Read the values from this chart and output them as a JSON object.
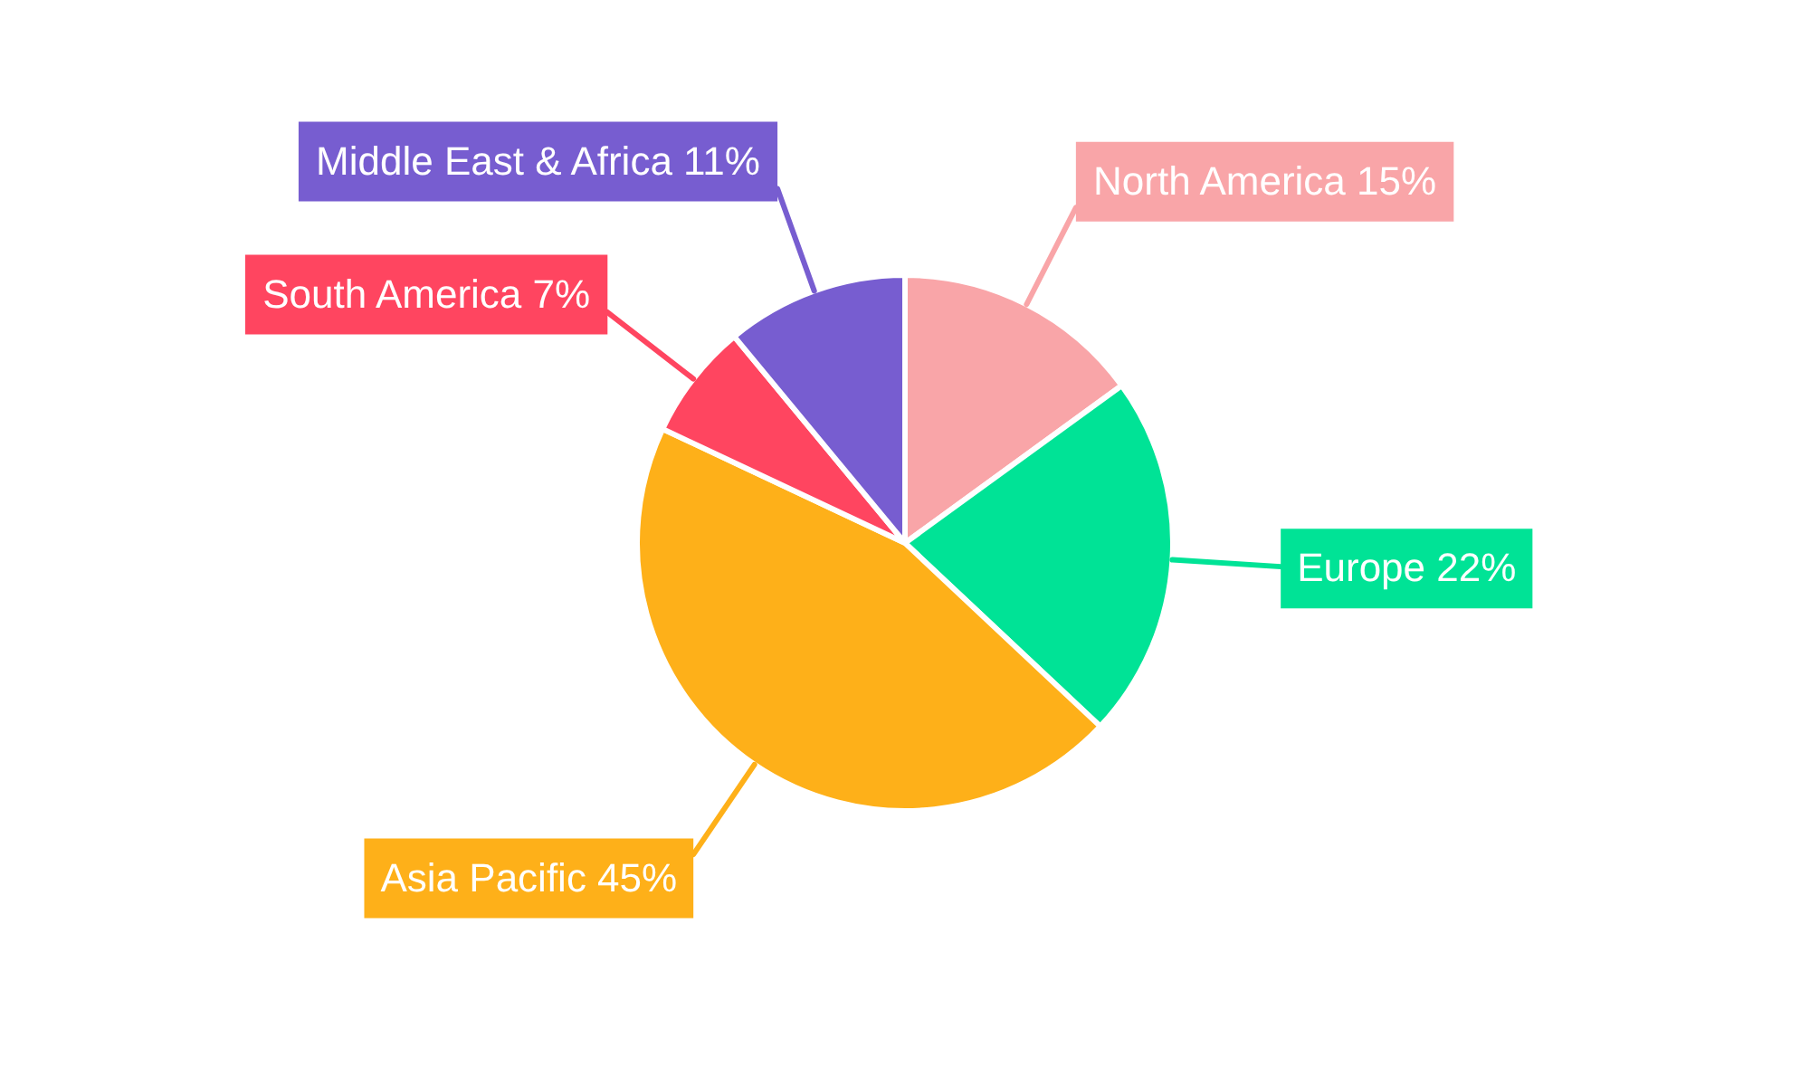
{
  "chart_data": {
    "type": "pie",
    "categories": [
      "North America",
      "Europe",
      "Asia Pacific",
      "South America",
      "Middle East & Africa"
    ],
    "values": [
      15,
      22,
      45,
      7,
      11
    ],
    "colors": [
      "#f9a5a8",
      "#00e396",
      "#feb019",
      "#ff4560",
      "#775dd0"
    ],
    "value_labels": [
      "15%",
      "22%",
      "45%",
      "7%",
      "11%"
    ],
    "legend": false
  }
}
